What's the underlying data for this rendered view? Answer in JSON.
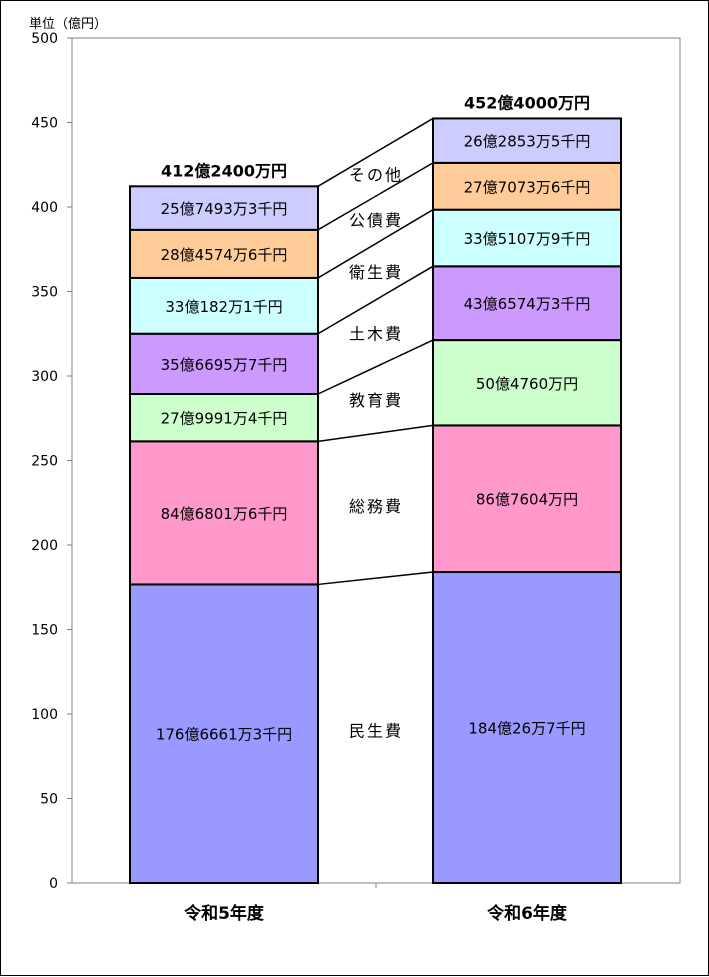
{
  "chart_data": {
    "type": "bar",
    "stacked": true,
    "unit_label": "単位（億円）",
    "categories": [
      "令和5年度",
      "令和6年度"
    ],
    "ylim": [
      0,
      500
    ],
    "yticks": [
      0,
      50,
      100,
      150,
      200,
      250,
      300,
      350,
      400,
      450,
      500
    ],
    "grid": false,
    "totals": [
      412.24,
      452.4
    ],
    "total_labels": [
      "412億2400万円",
      "452億4000万円"
    ],
    "series": [
      {
        "name": "民生費",
        "color": "#9999FF",
        "values": [
          176.6661,
          184.0026
        ],
        "labels": [
          "176億6661万3千円",
          "184億26万7千円"
        ]
      },
      {
        "name": "総務費",
        "color": "#FF99CC",
        "values": [
          84.6801,
          86.7604
        ],
        "labels": [
          "84億6801万6千円",
          "86億7604万円"
        ]
      },
      {
        "name": "教育費",
        "color": "#CCFFCC",
        "values": [
          27.9991,
          50.476
        ],
        "labels": [
          "27億9991万4千円",
          "50億4760万円"
        ]
      },
      {
        "name": "土木費",
        "color": "#CC99FF",
        "values": [
          35.6695,
          43.6574
        ],
        "labels": [
          "35億6695万7千円",
          "43億6574万3千円"
        ]
      },
      {
        "name": "衛生費",
        "color": "#CCFFFF",
        "values": [
          33.0182,
          33.5107
        ],
        "labels": [
          "33億182万1千円",
          "33億5107万9千円"
        ]
      },
      {
        "name": "公債費",
        "color": "#FFCC99",
        "values": [
          28.4574,
          27.7073
        ],
        "labels": [
          "28億4574万6千円",
          "27億7073万6千円"
        ]
      },
      {
        "name": "その他",
        "color": "#CCCCFF",
        "values": [
          25.7493,
          26.2853
        ],
        "labels": [
          "25億7493万3千円",
          "26億2853万5千円"
        ]
      }
    ]
  }
}
